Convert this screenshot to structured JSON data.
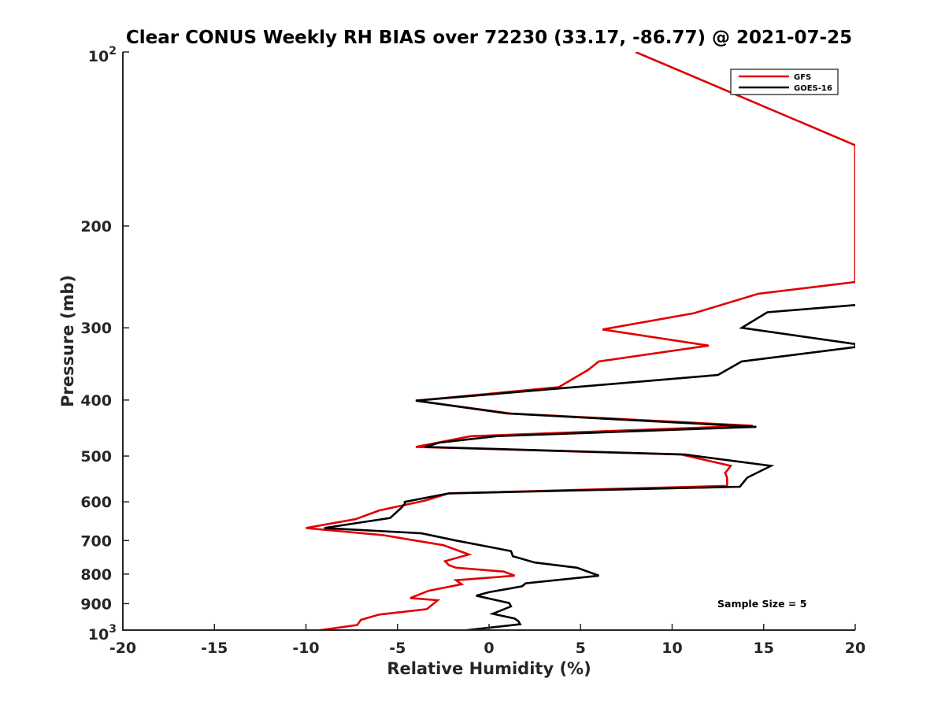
{
  "chart_data": {
    "type": "line",
    "title": "Clear CONUS Weekly RH BIAS over 72230 (33.17, -86.77) @ 2021-07-25",
    "xlabel": "Relative Humidity (%)",
    "ylabel": "Pressure (mb)",
    "xlim": [
      -20,
      20
    ],
    "ylim": [
      100,
      1000
    ],
    "yscale": "log",
    "yreversed": true,
    "grid": false,
    "x_ticks": [
      {
        "value": -20,
        "label": "-20"
      },
      {
        "value": -15,
        "label": "-15"
      },
      {
        "value": -10,
        "label": "-10"
      },
      {
        "value": -5,
        "label": "-5"
      },
      {
        "value": 0,
        "label": "0"
      },
      {
        "value": 5,
        "label": "5"
      },
      {
        "value": 10,
        "label": "10"
      },
      {
        "value": 15,
        "label": "15"
      },
      {
        "value": 20,
        "label": "20"
      }
    ],
    "y_ticks": [
      {
        "value": 100,
        "base": "10",
        "exp": "2"
      },
      {
        "value": 200,
        "label": "200"
      },
      {
        "value": 300,
        "label": "300"
      },
      {
        "value": 400,
        "label": "400"
      },
      {
        "value": 500,
        "label": "500"
      },
      {
        "value": 600,
        "label": "600"
      },
      {
        "value": 700,
        "label": "700"
      },
      {
        "value": 800,
        "label": "800"
      },
      {
        "value": 900,
        "label": "900"
      },
      {
        "value": 1000,
        "base": "10",
        "exp": "3"
      }
    ],
    "legend": {
      "position": "top-right",
      "entries": [
        "GFS",
        "GOES-16"
      ]
    },
    "annotation": "Sample Size = 5",
    "series": [
      {
        "name": "GFS",
        "color": "#e00000",
        "points": [
          [
            8.0,
            100
          ],
          [
            20.0,
            145
          ],
          [
            20.0,
            250
          ],
          [
            14.7,
            262
          ],
          [
            11.2,
            283
          ],
          [
            6.2,
            302
          ],
          [
            12.0,
            322
          ],
          [
            6.0,
            343
          ],
          [
            5.4,
            355
          ],
          [
            3.8,
            380
          ],
          [
            -4.0,
            401
          ],
          [
            1.2,
            422
          ],
          [
            14.4,
            443
          ],
          [
            -1.0,
            462
          ],
          [
            -4.0,
            482
          ],
          [
            10.5,
            497
          ],
          [
            13.2,
            520
          ],
          [
            12.9,
            535
          ],
          [
            13.0,
            545
          ],
          [
            13.0,
            563
          ],
          [
            -2.2,
            580
          ],
          [
            -3.5,
            597
          ],
          [
            -6.0,
            621
          ],
          [
            -7.3,
            643
          ],
          [
            -10.0,
            666
          ],
          [
            -5.8,
            685
          ],
          [
            -2.5,
            713
          ],
          [
            -1.1,
            740
          ],
          [
            -2.4,
            760
          ],
          [
            -2.2,
            772
          ],
          [
            -1.8,
            780
          ],
          [
            0.8,
            792
          ],
          [
            1.4,
            805
          ],
          [
            -1.8,
            820
          ],
          [
            -1.5,
            833
          ],
          [
            -3.3,
            855
          ],
          [
            -4.3,
            880
          ],
          [
            -2.8,
            888
          ],
          [
            -3.4,
            920
          ],
          [
            -6.0,
            940
          ],
          [
            -7.0,
            960
          ],
          [
            -7.2,
            980
          ],
          [
            -9.2,
            1000
          ]
        ]
      },
      {
        "name": "GOES-16",
        "color": "#000000",
        "points": [
          [
            20.0,
            274
          ],
          [
            15.2,
            282
          ],
          [
            13.8,
            300
          ],
          [
            20.0,
            320
          ],
          [
            20.0,
            324
          ],
          [
            13.8,
            343
          ],
          [
            12.5,
            362
          ],
          [
            -4.0,
            401
          ],
          [
            1.0,
            422
          ],
          [
            14.6,
            445
          ],
          [
            0.4,
            462
          ],
          [
            -2.7,
            474
          ],
          [
            -3.5,
            482
          ],
          [
            10.7,
            497
          ],
          [
            15.4,
            520
          ],
          [
            14.1,
            545
          ],
          [
            13.7,
            565
          ],
          [
            -2.2,
            580
          ],
          [
            -4.6,
            600
          ],
          [
            -4.6,
            605
          ],
          [
            -4.8,
            615
          ],
          [
            -5.4,
            640
          ],
          [
            -9.0,
            666
          ],
          [
            -3.7,
            680
          ],
          [
            -1.8,
            700
          ],
          [
            1.2,
            730
          ],
          [
            1.3,
            745
          ],
          [
            2.5,
            764
          ],
          [
            4.8,
            780
          ],
          [
            6.0,
            805
          ],
          [
            2.0,
            830
          ],
          [
            1.8,
            840
          ],
          [
            0.0,
            860
          ],
          [
            -0.7,
            872
          ],
          [
            1.1,
            898
          ],
          [
            1.2,
            910
          ],
          [
            0.2,
            937
          ],
          [
            1.4,
            955
          ],
          [
            1.6,
            965
          ],
          [
            1.7,
            977
          ],
          [
            -1.2,
            1000
          ]
        ]
      }
    ]
  }
}
